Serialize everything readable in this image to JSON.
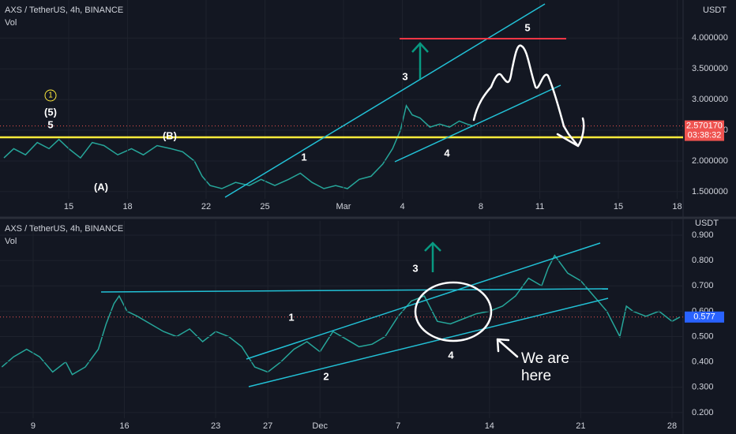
{
  "chart_data": [
    {
      "type": "line",
      "symbol": "AXS / TetherUS, 4h, BINANCE",
      "indicator": "Vol",
      "currency": "USDT",
      "color": "#26a69a",
      "x": [
        -3.3,
        -2.8,
        -2.2,
        -1.6,
        -1,
        -0.5,
        0,
        0.6,
        1.2,
        1.8,
        2.5,
        3.2,
        3.8,
        4.5,
        5.2,
        5.8,
        6.4,
        6.8,
        7.2,
        7.8,
        8.5,
        9.2,
        9.8,
        10.5,
        11.2,
        11.8,
        12.4,
        13,
        13.6,
        14.2,
        14.8,
        15.4,
        16,
        16.5,
        16.9,
        17.2,
        17.5,
        17.9,
        18.4,
        18.9,
        19.4,
        19.9,
        20.3,
        20.6
      ],
      "values": [
        2.05,
        2.2,
        2.1,
        2.3,
        2.2,
        2.35,
        2.2,
        2.05,
        2.3,
        2.25,
        2.1,
        2.2,
        2.1,
        2.25,
        2.2,
        2.15,
        2.0,
        1.75,
        1.6,
        1.55,
        1.65,
        1.6,
        1.7,
        1.6,
        1.7,
        1.8,
        1.65,
        1.55,
        1.6,
        1.55,
        1.7,
        1.75,
        1.95,
        2.2,
        2.5,
        2.9,
        2.75,
        2.7,
        2.55,
        2.6,
        2.55,
        2.65,
        2.6,
        2.57
      ],
      "xlim": [
        -3.5,
        31.3
      ],
      "xticks": [
        {
          "value": 0,
          "label": "15"
        },
        {
          "value": 3,
          "label": "18"
        },
        {
          "value": 7,
          "label": "22"
        },
        {
          "value": 10,
          "label": "25"
        },
        {
          "value": 14,
          "label": "Mar"
        },
        {
          "value": 17,
          "label": "4"
        },
        {
          "value": 21,
          "label": "8"
        },
        {
          "value": 24,
          "label": "11"
        },
        {
          "value": 28,
          "label": "15"
        },
        {
          "value": 31,
          "label": "18"
        }
      ],
      "ylim": [
        1.383,
        4.62
      ],
      "yticks": [
        {
          "value": 1.5,
          "label": "1.500000"
        },
        {
          "value": 2,
          "label": "2.000000"
        },
        {
          "value": 2.5,
          "label": "2.500000"
        },
        {
          "value": 3,
          "label": "3.000000"
        },
        {
          "value": 3.5,
          "label": "3.500000"
        },
        {
          "value": 4,
          "label": "4.000000"
        }
      ],
      "last_price": {
        "value": 2.57017,
        "label": "2.570170"
      },
      "countdown": "03:38:32",
      "annotations": [
        "1",
        "(5)",
        "5",
        "(B)",
        "(A)",
        "1",
        "3",
        "4",
        "5"
      ]
    },
    {
      "type": "line",
      "symbol": "AXS / TetherUS, 4h, BINANCE",
      "indicator": "Vol",
      "currency": "USDT",
      "color": "#26a69a",
      "x": [
        -2.4,
        -1.5,
        -0.5,
        0.5,
        1.5,
        2.5,
        3,
        4,
        5,
        5.6,
        6.2,
        6.6,
        7.2,
        8,
        9,
        10,
        11,
        12,
        13,
        14,
        15,
        16,
        17,
        18,
        19,
        20,
        21,
        22,
        23,
        24,
        25,
        26,
        27,
        28,
        29,
        30,
        31,
        32,
        33,
        34,
        35,
        36,
        37,
        38,
        39,
        39.5,
        40,
        41,
        42,
        43,
        43.5,
        44,
        45,
        45.5,
        46,
        47,
        48,
        49,
        49.6
      ],
      "values": [
        0.38,
        0.42,
        0.45,
        0.42,
        0.36,
        0.4,
        0.35,
        0.38,
        0.45,
        0.55,
        0.63,
        0.66,
        0.6,
        0.58,
        0.55,
        0.52,
        0.5,
        0.53,
        0.48,
        0.52,
        0.5,
        0.46,
        0.38,
        0.36,
        0.4,
        0.45,
        0.48,
        0.44,
        0.52,
        0.49,
        0.46,
        0.47,
        0.5,
        0.58,
        0.64,
        0.66,
        0.56,
        0.55,
        0.57,
        0.59,
        0.6,
        0.62,
        0.66,
        0.73,
        0.7,
        0.77,
        0.82,
        0.75,
        0.72,
        0.66,
        0.63,
        0.6,
        0.5,
        0.62,
        0.6,
        0.58,
        0.6,
        0.56,
        0.577
      ],
      "xlim": [
        -2.54,
        49.85
      ],
      "xticks": [
        {
          "value": 0,
          "label": "9"
        },
        {
          "value": 7,
          "label": "16"
        },
        {
          "value": 14,
          "label": "23"
        },
        {
          "value": 18,
          "label": "27"
        },
        {
          "value": 22,
          "label": "Dec"
        },
        {
          "value": 28,
          "label": "7"
        },
        {
          "value": 35,
          "label": "14"
        },
        {
          "value": 42,
          "label": "21"
        },
        {
          "value": 49,
          "label": "28"
        }
      ],
      "ylim": [
        0.178,
        0.956
      ],
      "yticks": [
        {
          "value": 0.2,
          "label": "0.200"
        },
        {
          "value": 0.3,
          "label": "0.300"
        },
        {
          "value": 0.4,
          "label": "0.400"
        },
        {
          "value": 0.5,
          "label": "0.500"
        },
        {
          "value": 0.6,
          "label": "0.600"
        },
        {
          "value": 0.7,
          "label": "0.700"
        },
        {
          "value": 0.8,
          "label": "0.800"
        },
        {
          "value": 0.9,
          "label": "0.900"
        }
      ],
      "last_price": {
        "value": 0.577,
        "label": "0.577"
      },
      "annotations": [
        "3",
        "1",
        "2",
        "4"
      ],
      "callout": [
        "We are",
        "here"
      ]
    }
  ]
}
